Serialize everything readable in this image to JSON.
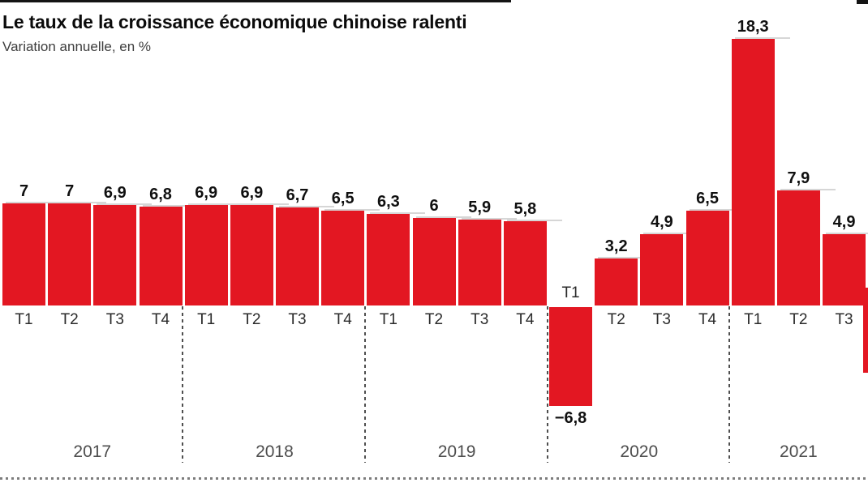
{
  "chart_data": {
    "type": "bar",
    "title": "Le taux de la croissance économique chinoise ralenti",
    "subtitle": "Variation annuelle, en %",
    "unit": "%",
    "bar_color": "#e31722",
    "ylim": [
      -8,
      19
    ],
    "grid": false,
    "value_labels_shown": true,
    "years": [
      {
        "year": "2017",
        "quarters": [
          "T1",
          "T2",
          "T3",
          "T4"
        ],
        "values": [
          7,
          7,
          6.9,
          6.8
        ],
        "value_labels": [
          "7",
          "7",
          "6,9",
          "6,8"
        ]
      },
      {
        "year": "2018",
        "quarters": [
          "T1",
          "T2",
          "T3",
          "T4"
        ],
        "values": [
          6.9,
          6.9,
          6.7,
          6.5
        ],
        "value_labels": [
          "6,9",
          "6,9",
          "6,7",
          "6,5"
        ]
      },
      {
        "year": "2019",
        "quarters": [
          "T1",
          "T2",
          "T3",
          "T4"
        ],
        "values": [
          6.3,
          6,
          5.9,
          5.8
        ],
        "value_labels": [
          "6,3",
          "6",
          "5,9",
          "5,8"
        ]
      },
      {
        "year": "2020",
        "quarters": [
          "T1",
          "T2",
          "T3",
          "T4"
        ],
        "values": [
          -6.8,
          3.2,
          4.9,
          6.5
        ],
        "value_labels": [
          "−6,8",
          "3,2",
          "4,9",
          "6,5"
        ]
      },
      {
        "year": "2021",
        "quarters": [
          "T1",
          "T2",
          "T3"
        ],
        "values": [
          18.3,
          7.9,
          4.9
        ],
        "value_labels": [
          "18,3",
          "7,9",
          "4,9"
        ]
      }
    ]
  }
}
